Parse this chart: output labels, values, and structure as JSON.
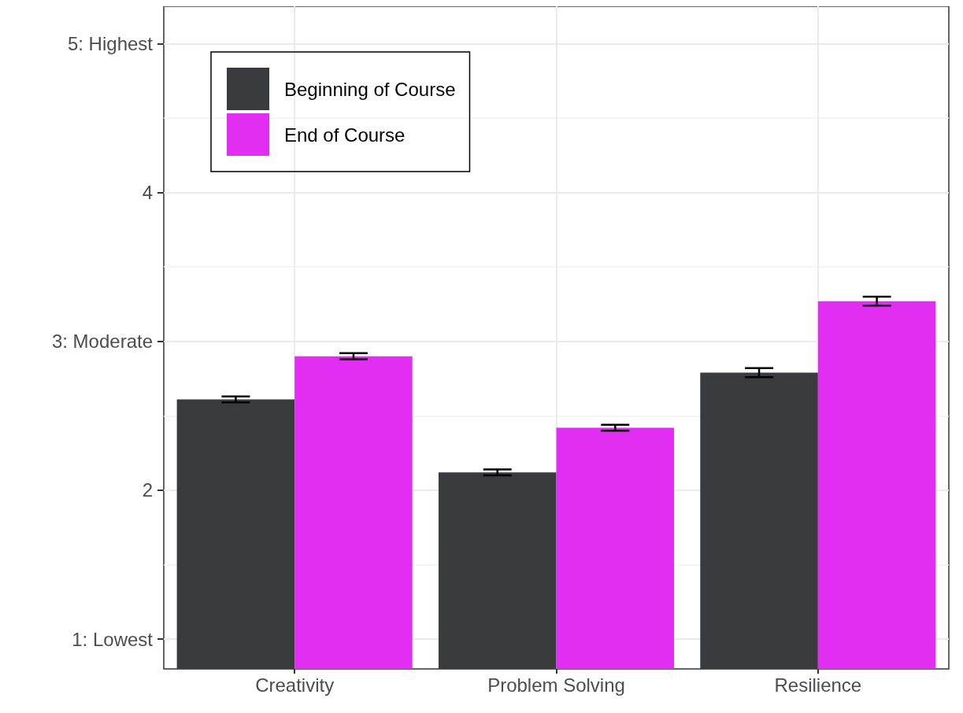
{
  "chart_data": {
    "type": "bar",
    "categories": [
      "Creativity",
      "Problem Solving",
      "Resilience"
    ],
    "series": [
      {
        "name": "Beginning of Course",
        "color": "#393b3d",
        "values": [
          2.61,
          2.12,
          2.79
        ],
        "errors": [
          0.02,
          0.02,
          0.03
        ]
      },
      {
        "name": "End of Course",
        "color": "#e22ef2",
        "values": [
          2.9,
          2.42,
          3.27
        ],
        "errors": [
          0.02,
          0.02,
          0.03
        ]
      }
    ],
    "ylim": [
      0.8,
      5.25
    ],
    "yticks": [
      {
        "value": 1,
        "label": "1: Lowest"
      },
      2,
      {
        "value": 3,
        "label": "3: Moderate"
      },
      4,
      {
        "value": 5,
        "label": "5: Highest"
      }
    ],
    "grid": true,
    "legend": "top left"
  }
}
